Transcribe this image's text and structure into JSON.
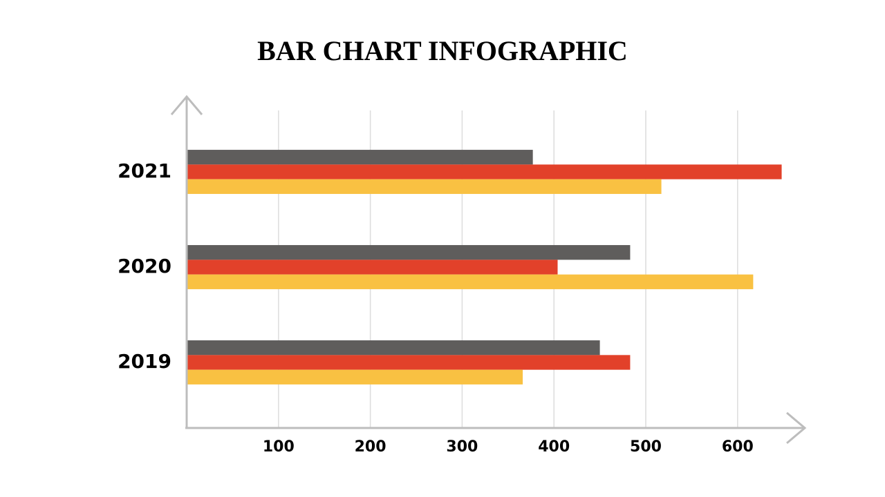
{
  "chart_data": {
    "type": "bar",
    "orientation": "horizontal",
    "title": "BAR CHART INFOGRAPHIC",
    "categories": [
      "2019",
      "2020",
      "2021"
    ],
    "series": [
      {
        "color": "#5f5d5c",
        "values": [
          450,
          483,
          377
        ]
      },
      {
        "color": "#e2412a",
        "values": [
          483,
          404,
          648
        ]
      },
      {
        "color": "#f9c142",
        "values": [
          366,
          617,
          517
        ]
      }
    ],
    "xlim": [
      0,
      660
    ],
    "xticks": [
      100,
      200,
      300,
      400,
      500,
      600
    ],
    "grid": true
  }
}
